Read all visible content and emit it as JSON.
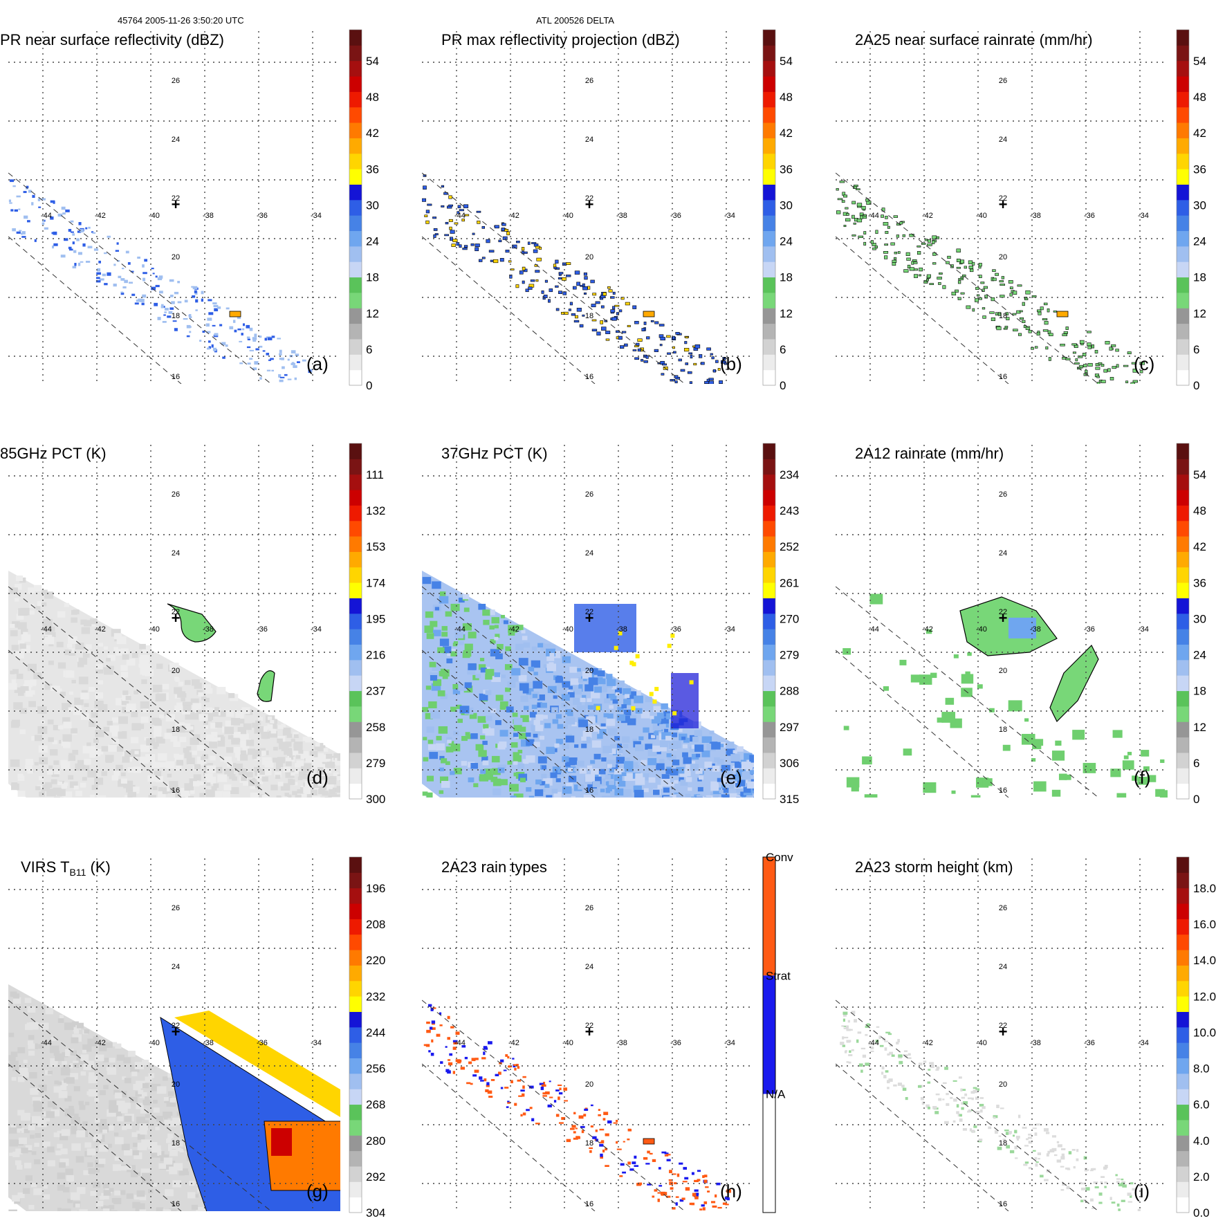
{
  "header": {
    "left": "45764 2005-11-26 3:50:20 UTC",
    "center": "ATL 200526 DELTA"
  },
  "map": {
    "lon_ticks": [
      "-44",
      "-42",
      "-40",
      "-38",
      "-36",
      "-34"
    ],
    "lat_ticks": [
      "26",
      "24",
      "22",
      "20",
      "18",
      "16"
    ],
    "center_marker": "+"
  },
  "chart_data": [
    {
      "id": "a",
      "type": "heatmap",
      "label": "(a)",
      "title": "PR near surface reflectivity (dBZ)",
      "colorbar": [
        "0",
        "6",
        "12",
        "18",
        "24",
        "30",
        "36",
        "42",
        "48",
        "54"
      ],
      "swath": "narrow",
      "pattern": "sparse-blue"
    },
    {
      "id": "b",
      "type": "heatmap",
      "label": "(b)",
      "title": "PR max reflectivity projection (dBZ)",
      "colorbar": [
        "0",
        "6",
        "12",
        "18",
        "24",
        "30",
        "36",
        "42",
        "48",
        "54"
      ],
      "swath": "narrow",
      "pattern": "sparse-contour"
    },
    {
      "id": "c",
      "type": "heatmap",
      "label": "(c)",
      "title": "2A25 near surface rainrate (mm/hr)",
      "colorbar": [
        "0",
        "6",
        "12",
        "18",
        "24",
        "30",
        "36",
        "42",
        "48",
        "54"
      ],
      "swath": "narrow",
      "pattern": "sparse-contour-green"
    },
    {
      "id": "d",
      "type": "heatmap",
      "label": "(d)",
      "title": "85GHz PCT (K)",
      "colorbar": [
        "300",
        "279",
        "258",
        "237",
        "216",
        "195",
        "174",
        "153",
        "132",
        "111"
      ],
      "swath": "wide",
      "pattern": "gray-with-green-cells"
    },
    {
      "id": "e",
      "type": "heatmap",
      "label": "(e)",
      "title": "37GHz PCT (K)",
      "colorbar": [
        "315",
        "306",
        "297",
        "288",
        "279",
        "270",
        "261",
        "252",
        "243",
        "234"
      ],
      "swath": "wide",
      "pattern": "blue-field-green-left"
    },
    {
      "id": "f",
      "type": "heatmap",
      "label": "(f)",
      "title": "2A12 rainrate (mm/hr)",
      "colorbar": [
        "0",
        "6",
        "12",
        "18",
        "24",
        "30",
        "36",
        "42",
        "48",
        "54"
      ],
      "swath": "wide",
      "pattern": "green-patches"
    },
    {
      "id": "g",
      "type": "heatmap",
      "label": "(g)",
      "title": "VIRS T",
      "title_sub": "B11",
      "title_tail": " (K)",
      "colorbar": [
        "304",
        "292",
        "280",
        "268",
        "256",
        "244",
        "232",
        "220",
        "208",
        "196"
      ],
      "swath": "wide",
      "pattern": "cloud-top-field"
    },
    {
      "id": "h",
      "type": "heatmap",
      "label": "(h)",
      "title": "2A23 rain types",
      "colorbar_categories": [
        "N/A",
        "Strat",
        "Conv"
      ],
      "category_colors": [
        "#ffffff",
        "#1a1aee",
        "#ff5a14"
      ],
      "swath": "narrow",
      "pattern": "red-blue-dots"
    },
    {
      "id": "i",
      "type": "heatmap",
      "label": "(i)",
      "title": "2A23 storm height (km)",
      "colorbar": [
        "0.0",
        "2.0",
        "4.0",
        "6.0",
        "8.0",
        "10.0",
        "12.0",
        "14.0",
        "16.0",
        "18.0"
      ],
      "swath": "narrow",
      "pattern": "faint-gray"
    }
  ],
  "colors": {
    "scale": [
      "#ffffff",
      "#ececec",
      "#d2d2d2",
      "#b4b4b4",
      "#969696",
      "#78d778",
      "#5ac35a",
      "#c7d6f5",
      "#a0bff0",
      "#6fa6ef",
      "#4682e6",
      "#2e5ee6",
      "#1414d6",
      "#ffff00",
      "#ffd500",
      "#ffaa00",
      "#ff7a00",
      "#ff4a00",
      "#ee1a00",
      "#cc0000",
      "#a50f0f",
      "#7a1414",
      "#5a1010"
    ]
  }
}
